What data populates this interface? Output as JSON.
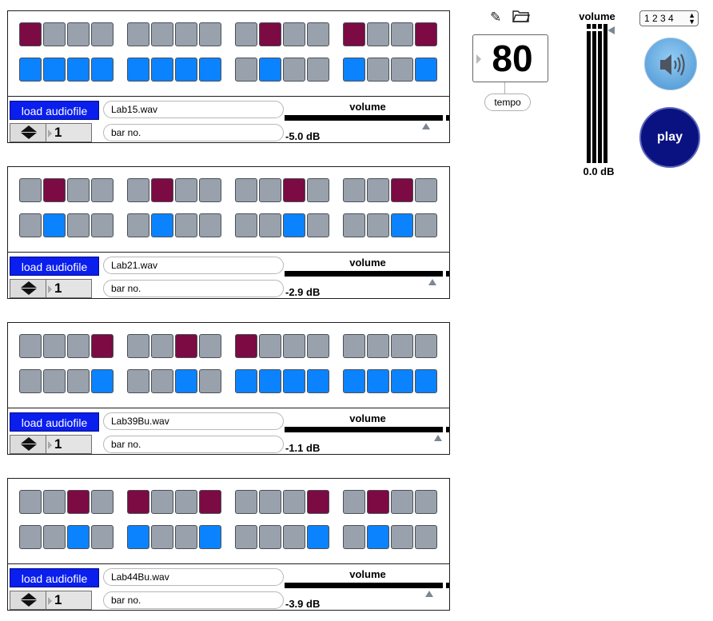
{
  "tracks": [
    {
      "top_pattern": [
        1,
        0,
        0,
        0,
        0,
        0,
        0,
        0,
        0,
        1,
        0,
        0,
        1,
        0,
        0,
        1
      ],
      "bottom_pattern": [
        1,
        1,
        1,
        1,
        1,
        1,
        1,
        1,
        0,
        1,
        0,
        0,
        1,
        0,
        0,
        1
      ],
      "load_label": "load audiofile",
      "filename": "Lab15.wav",
      "bar_value": "1",
      "bar_label": "bar no.",
      "volume_label": "volume",
      "volume_db": "-5.0 dB",
      "volume_level": 0.86
    },
    {
      "top_pattern": [
        0,
        1,
        0,
        0,
        0,
        1,
        0,
        0,
        0,
        0,
        1,
        0,
        0,
        0,
        1,
        0
      ],
      "bottom_pattern": [
        0,
        1,
        0,
        0,
        0,
        1,
        0,
        0,
        0,
        0,
        1,
        0,
        0,
        0,
        1,
        0
      ],
      "load_label": "load audiofile",
      "filename": "Lab21.wav",
      "bar_value": "1",
      "bar_label": "bar no.",
      "volume_label": "volume",
      "volume_db": "-2.9 dB",
      "volume_level": 0.9
    },
    {
      "top_pattern": [
        0,
        0,
        0,
        1,
        0,
        0,
        1,
        0,
        1,
        0,
        0,
        0,
        0,
        0,
        0,
        0
      ],
      "bottom_pattern": [
        0,
        0,
        0,
        1,
        0,
        0,
        1,
        0,
        1,
        1,
        1,
        1,
        1,
        1,
        1,
        1
      ],
      "load_label": "load audiofile",
      "filename": "Lab39Bu.wav",
      "bar_value": "1",
      "bar_label": "bar no.",
      "volume_label": "volume",
      "volume_db": "-1.1 dB",
      "volume_level": 0.93
    },
    {
      "top_pattern": [
        0,
        0,
        1,
        0,
        1,
        0,
        0,
        1,
        0,
        0,
        0,
        1,
        0,
        1,
        0,
        0
      ],
      "bottom_pattern": [
        0,
        0,
        1,
        0,
        1,
        0,
        0,
        1,
        0,
        0,
        0,
        1,
        0,
        1,
        0,
        0
      ],
      "load_label": "load audiofile",
      "filename": "Lab44Bu.wav",
      "bar_value": "1",
      "bar_label": "bar no.",
      "volume_label": "volume",
      "volume_db": "-3.9 dB",
      "volume_level": 0.88
    }
  ],
  "tempo": {
    "value": "80",
    "label": "tempo"
  },
  "icons": {
    "edit": "pencil-icon",
    "open": "folder-icon",
    "speaker": "speaker-icon"
  },
  "master": {
    "label": "volume",
    "db": "0.0 dB"
  },
  "bars_menu": {
    "value": "1 2 3 4"
  },
  "play": {
    "label": "play"
  },
  "colors": {
    "step_off": "#98a1ac",
    "step_top_on": "#7c0a43",
    "step_bottom_on": "#0b83ff",
    "load_button": "#0a1eee",
    "play_button": "#0a1282"
  }
}
